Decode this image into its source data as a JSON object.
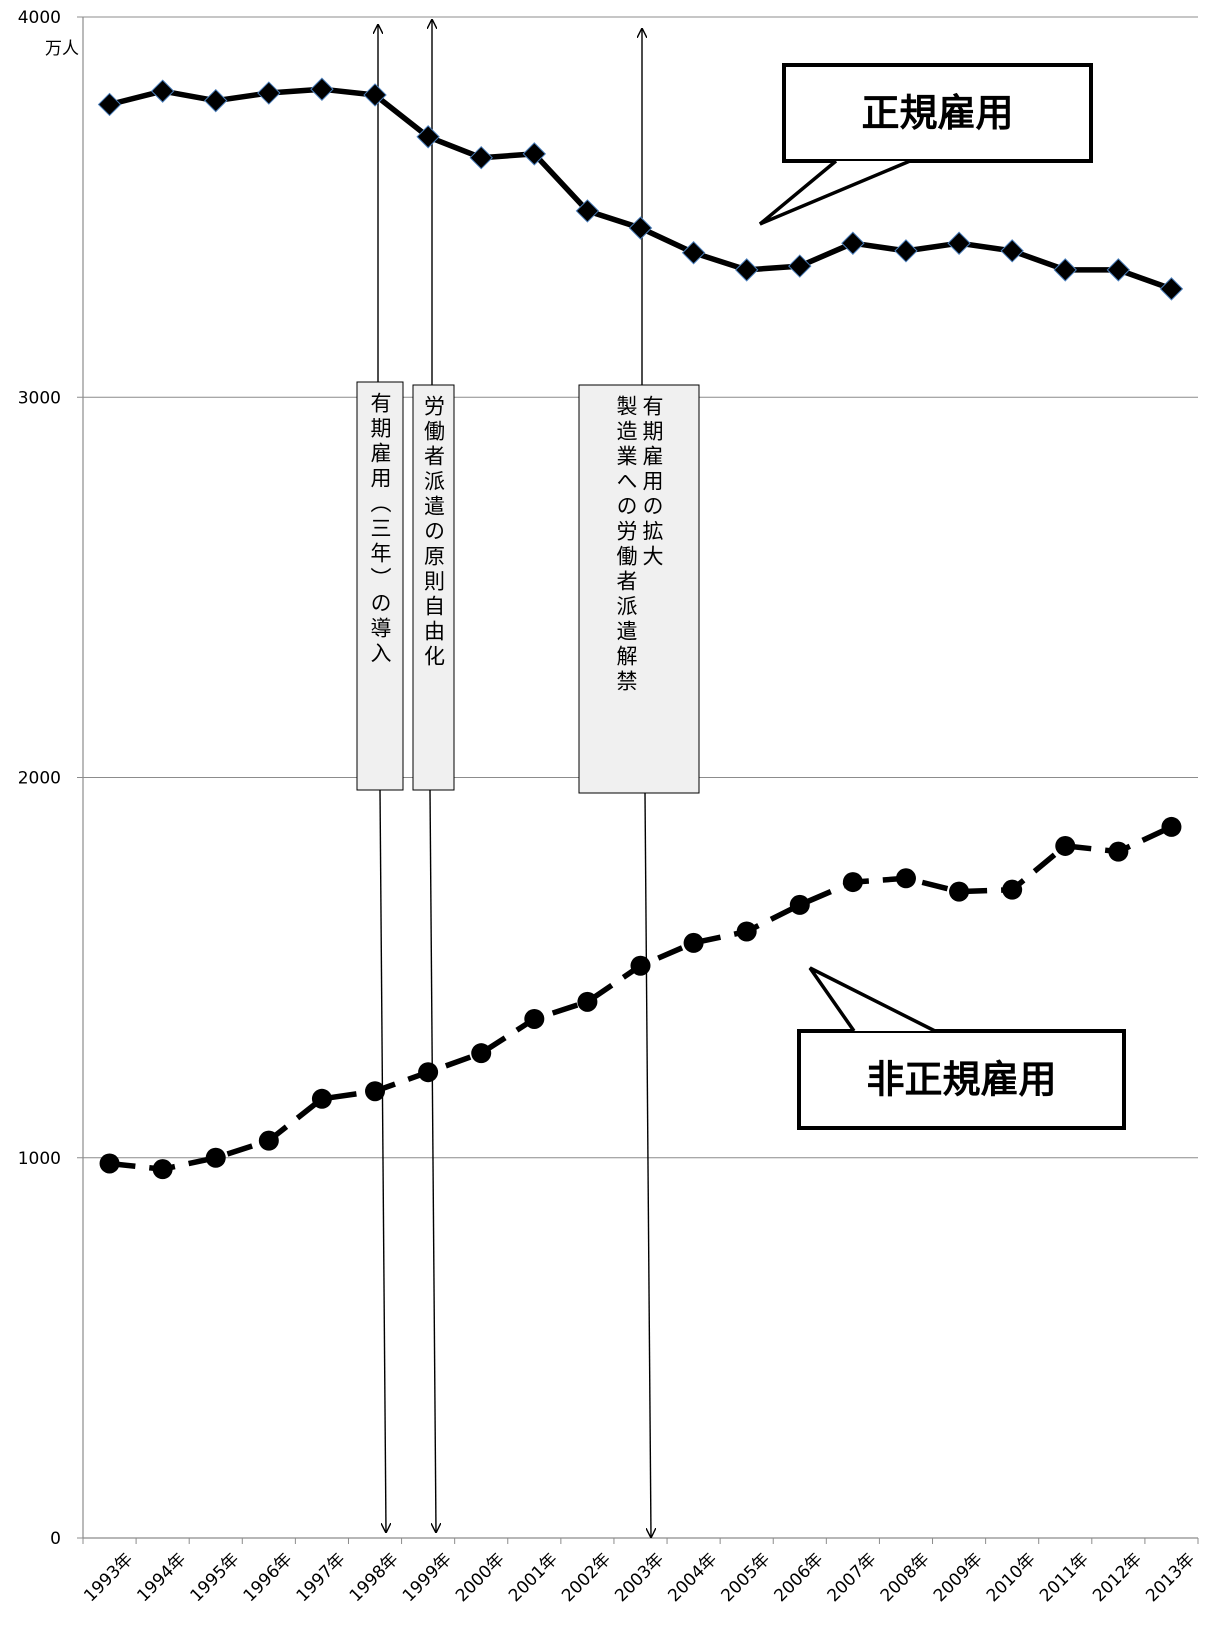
{
  "chart_data": {
    "type": "line",
    "categories": [
      "1993年",
      "1994年",
      "1995年",
      "1996年",
      "1997年",
      "1998年",
      "1999年",
      "2000年",
      "2001年",
      "2002年",
      "2003年",
      "2004年",
      "2005年",
      "2006年",
      "2007年",
      "2008年",
      "2009年",
      "2010年",
      "2011年",
      "2012年",
      "2013年"
    ],
    "series": [
      {
        "name": "正規雇用",
        "values": [
          3770,
          3805,
          3780,
          3800,
          3810,
          3795,
          3685,
          3630,
          3640,
          3490,
          3445,
          3380,
          3335,
          3345,
          3405,
          3385,
          3405,
          3385,
          3335,
          3335,
          3285
        ],
        "color": "#000000",
        "marker": "diamond",
        "dash": "solid"
      },
      {
        "name": "非正規雇用",
        "values": [
          985,
          970,
          1000,
          1045,
          1155,
          1175,
          1225,
          1275,
          1365,
          1410,
          1505,
          1565,
          1595,
          1665,
          1725,
          1735,
          1700,
          1705,
          1820,
          1805,
          1870
        ],
        "color": "#000000",
        "marker": "circle",
        "dash": "dashed"
      }
    ],
    "ylim": [
      0,
      4000
    ],
    "yticks": [
      0,
      1000,
      2000,
      3000,
      4000
    ],
    "yunit": "万人",
    "grid": true,
    "callouts": [
      {
        "label": "正規雇用"
      },
      {
        "label": "非正規雇用"
      }
    ],
    "annotations": [
      {
        "year": "1998年",
        "lines": [
          "有期雇用（三年）の導入"
        ]
      },
      {
        "year": "1999年",
        "lines": [
          "労働者派遣の原則自由化"
        ]
      },
      {
        "year": "2003年",
        "lines": [
          "有期雇用の拡大",
          "製造業への労働者派遣解禁"
        ]
      }
    ]
  }
}
